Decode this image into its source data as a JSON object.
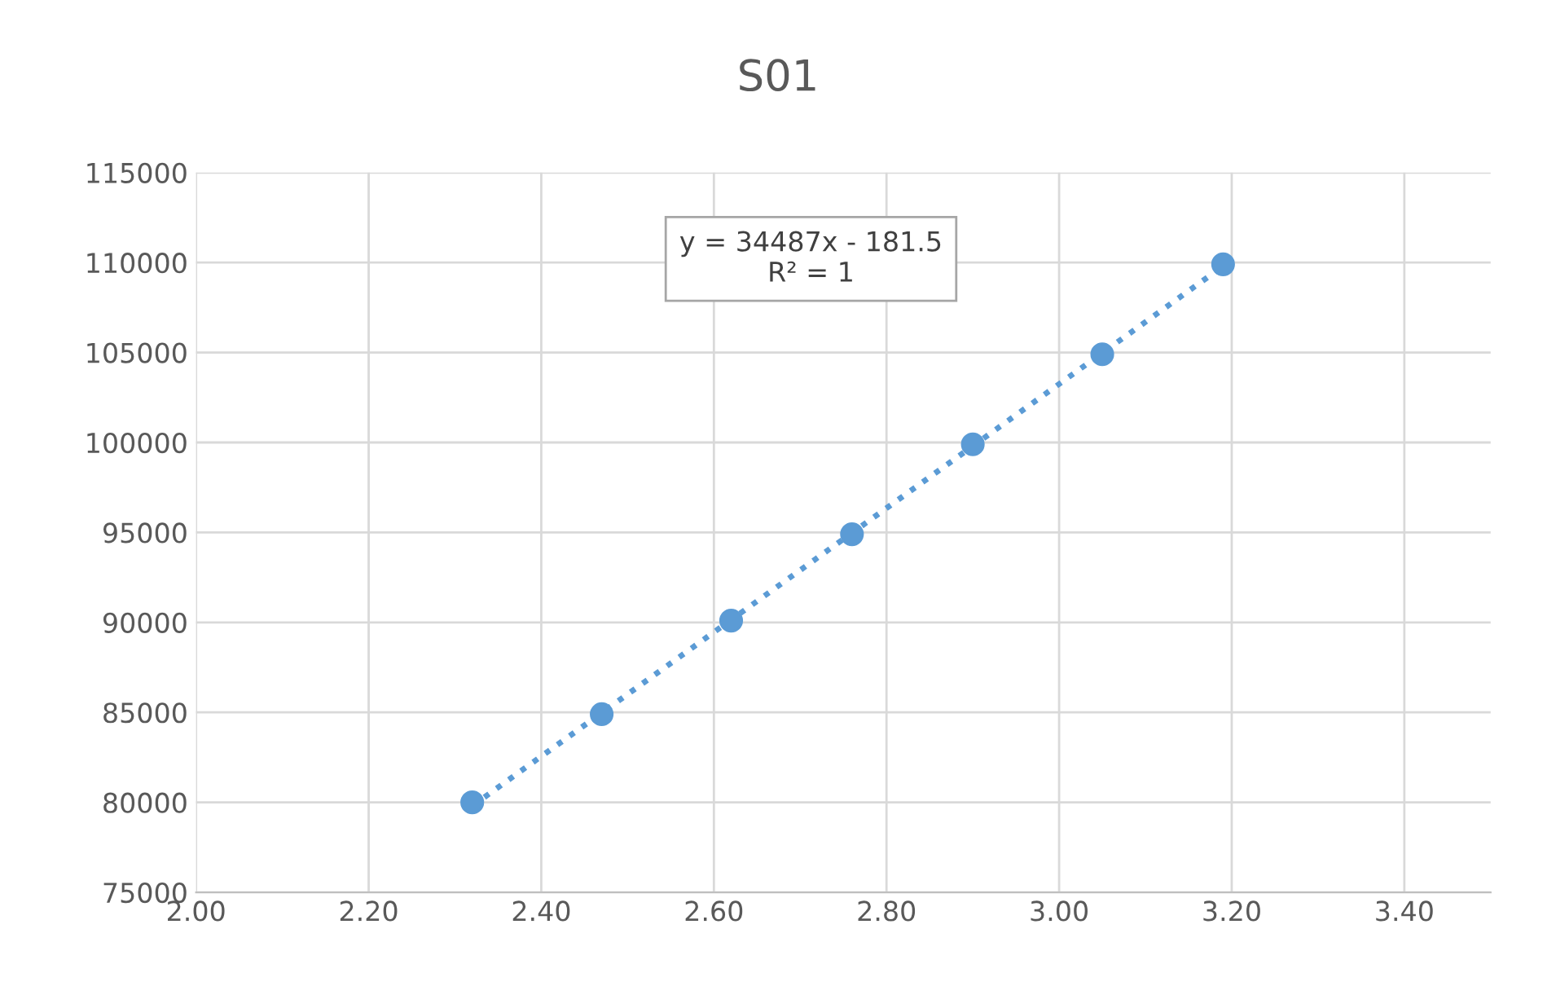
{
  "chart_data": {
    "type": "scatter",
    "title": "S01",
    "series": [
      {
        "color": "#5b9bd5",
        "marker": "circle",
        "x": [
          2.32,
          2.47,
          2.62,
          2.76,
          2.9,
          3.05,
          3.19
        ],
        "values": [
          80000,
          84900,
          90100,
          94900,
          99900,
          104900,
          109900
        ]
      },
      {
        "type": "line",
        "color": "#5b9bd5",
        "line_style": "dotted",
        "marker": "none",
        "x": [
          2.32,
          3.19
        ],
        "values": [
          79800,
          109800
        ]
      }
    ],
    "annotations": [
      "y = 34487x - 181.5\nR² = 1"
    ],
    "xlim": [
      2.0,
      3.5
    ],
    "xticks": [
      {
        "value": 2.0,
        "label": "2.00"
      },
      {
        "value": 2.2,
        "label": "2.20"
      },
      {
        "value": 2.4,
        "label": "2.40"
      },
      {
        "value": 2.6,
        "label": "2.60"
      },
      {
        "value": 2.8,
        "label": "2.80"
      },
      {
        "value": 3.0,
        "label": "3.00"
      },
      {
        "value": 3.2,
        "label": "3.20"
      },
      {
        "value": 3.4,
        "label": "3.40"
      }
    ],
    "ylim": [
      75000,
      115000
    ],
    "yticks": [
      75000,
      80000,
      85000,
      90000,
      95000,
      100000,
      105000,
      110000,
      115000
    ],
    "grid": true,
    "legend": false
  }
}
